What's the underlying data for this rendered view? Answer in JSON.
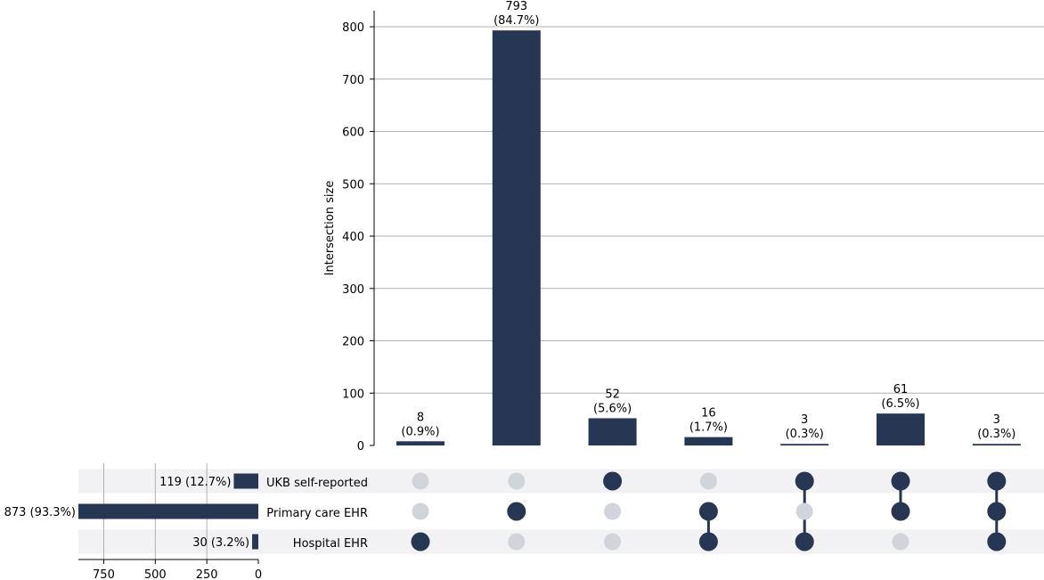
{
  "chart_data": {
    "type": "bar",
    "subtype": "upset",
    "ylabel": "Intersection size",
    "ylim": [
      0,
      830
    ],
    "yticks": [
      0,
      100,
      200,
      300,
      400,
      500,
      600,
      700,
      800
    ],
    "grid": true,
    "sets": [
      {
        "name": "UKB self-reported",
        "size": 119,
        "label": "119 (12.7%)"
      },
      {
        "name": "Primary care EHR",
        "size": 873,
        "label": "873 (93.3%)"
      },
      {
        "name": "Hospital EHR",
        "size": 30,
        "label": "30 (3.2%)"
      }
    ],
    "set_size_ticks": [
      750,
      500,
      250,
      0
    ],
    "set_size_xlim": [
      0,
      873
    ],
    "intersections": [
      {
        "members": [
          0,
          0,
          1
        ],
        "value": 8,
        "label": [
          "8",
          "(0.9%)"
        ]
      },
      {
        "members": [
          0,
          1,
          0
        ],
        "value": 793,
        "label": [
          "793",
          "(84.7%)"
        ]
      },
      {
        "members": [
          1,
          0,
          0
        ],
        "value": 52,
        "label": [
          "52",
          "(5.6%)"
        ]
      },
      {
        "members": [
          0,
          1,
          1
        ],
        "value": 16,
        "label": [
          "16",
          "(1.7%)"
        ]
      },
      {
        "members": [
          1,
          0,
          1
        ],
        "value": 3,
        "label": [
          "3",
          "(0.3%)"
        ]
      },
      {
        "members": [
          1,
          1,
          0
        ],
        "value": 61,
        "label": [
          "61",
          "(6.5%)"
        ]
      },
      {
        "members": [
          1,
          1,
          1
        ],
        "value": 3,
        "label": [
          "3",
          "(0.3%)"
        ]
      }
    ],
    "colors": {
      "bar": "#273652",
      "dot_active": "#273652",
      "dot_inactive": "#d2d4dc",
      "stripe": "#f2f2f5",
      "grid": "#b0b0b0",
      "axis": "#000000"
    }
  }
}
